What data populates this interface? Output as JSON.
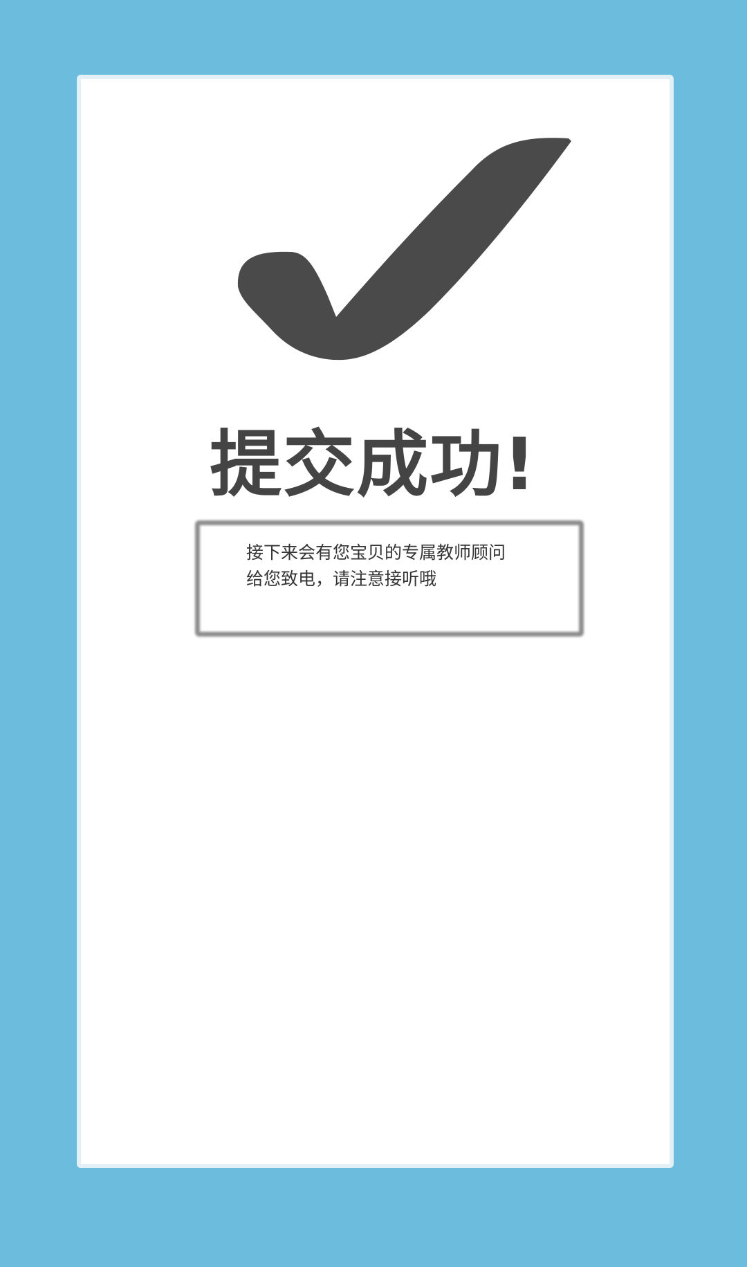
{
  "colors": {
    "background": "#6cbcdd",
    "card": "#ffffff",
    "card_border": "#e3f1f7",
    "check_mark": "#4a4a4a",
    "title_text": "#444444",
    "frame": "#8d8d8d"
  },
  "success": {
    "icon": "checkmark-icon",
    "title": "提交成功!",
    "message_line1": "接下来会有您宝贝的专属教师顾问",
    "message_line2": "给您致电，请注意接听哦"
  }
}
